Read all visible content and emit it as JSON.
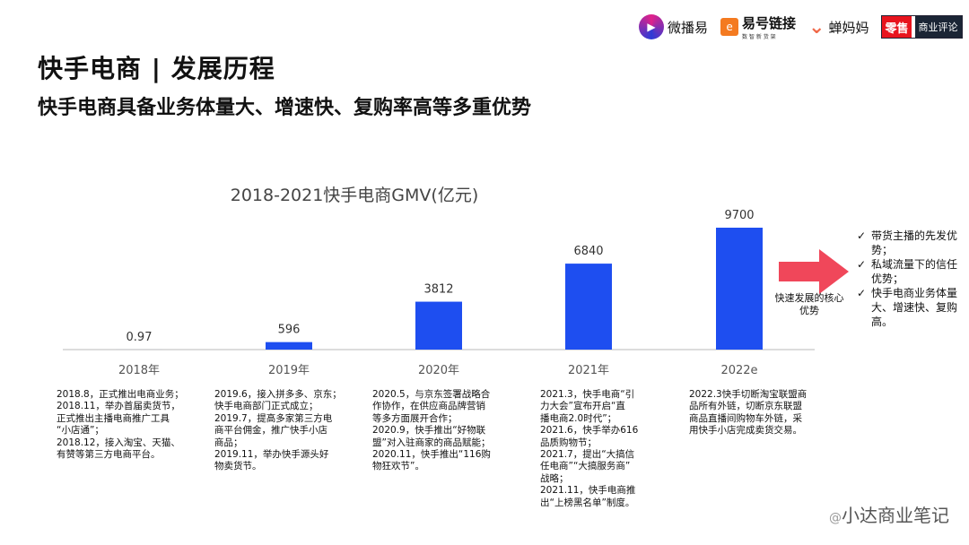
{
  "header": {
    "title": "快手电商 | 发展历程",
    "subtitle": "快手电商具备业务体量大、增速快、复购率高等多重优势"
  },
  "logos": [
    {
      "name": "微播易"
    },
    {
      "name": "易号链接",
      "tagline": "数 智 新 货 架"
    },
    {
      "name": "蝉妈妈"
    },
    {
      "name": "零售",
      "name2": "商业评论"
    }
  ],
  "chart_data": {
    "type": "bar",
    "title": "2018-2021快手电商GMV(亿元)",
    "categories": [
      "2018年",
      "2019年",
      "2020年",
      "2021年",
      "2022e"
    ],
    "values": [
      0.97,
      596,
      3812,
      6840,
      9700
    ],
    "data_labels": [
      "0.97",
      "596",
      "3812",
      "6840",
      "9700"
    ],
    "ylim": [
      0,
      9700
    ],
    "grid": false,
    "bar_color": "#1e4ef0"
  },
  "descriptions": [
    "2018.8，正式推出电商业务；\n2018.11，举办首届卖货节，\n正式推出主播电商推广工具\n“小店通”；\n2018.12，接入淘宝、天猫、\n有赞等第三方电商平台。",
    "2019.6，接入拼多多、京东；\n快手电商部门正式成立；\n2019.7，提高多家第三方电\n商平台佣金，推广快手小店\n商品；\n2019.11，举办快手源头好\n物卖货节。",
    "2020.5，与京东签署战略合\n作协作，在供应商品牌营销\n等多方面展开合作；\n2020.9，快手推出“好物联\n盟”对入驻商家的商品赋能；\n2020.11，快手推出“116购\n物狂欢节”。",
    "2021.3，快手电商“引\n力大会”宣布开启“直\n播电商2.0时代”；\n2021.6，快手举办616\n品质购物节；\n2021.7，提出“大搞信\n任电商”“大搞服务商”\n战略；\n2021.11，快手电商推\n出“上榜黑名单”制度。",
    "2022.3快手切断淘宝联盟商\n品所有外链，切断京东联盟\n商品直播间购物车外链，采\n用快手小店完成卖货交易。"
  ],
  "core": {
    "label": "快速发展的核心优势",
    "arrow_color": "#f0475a"
  },
  "advantages": [
    "带货主播的先发优势；",
    "私域流量下的信任优势；",
    "快手电商业务体量大、增速快、复购高。"
  ],
  "watermark": {
    "prefix": "@",
    "text": "小达商业笔记"
  }
}
